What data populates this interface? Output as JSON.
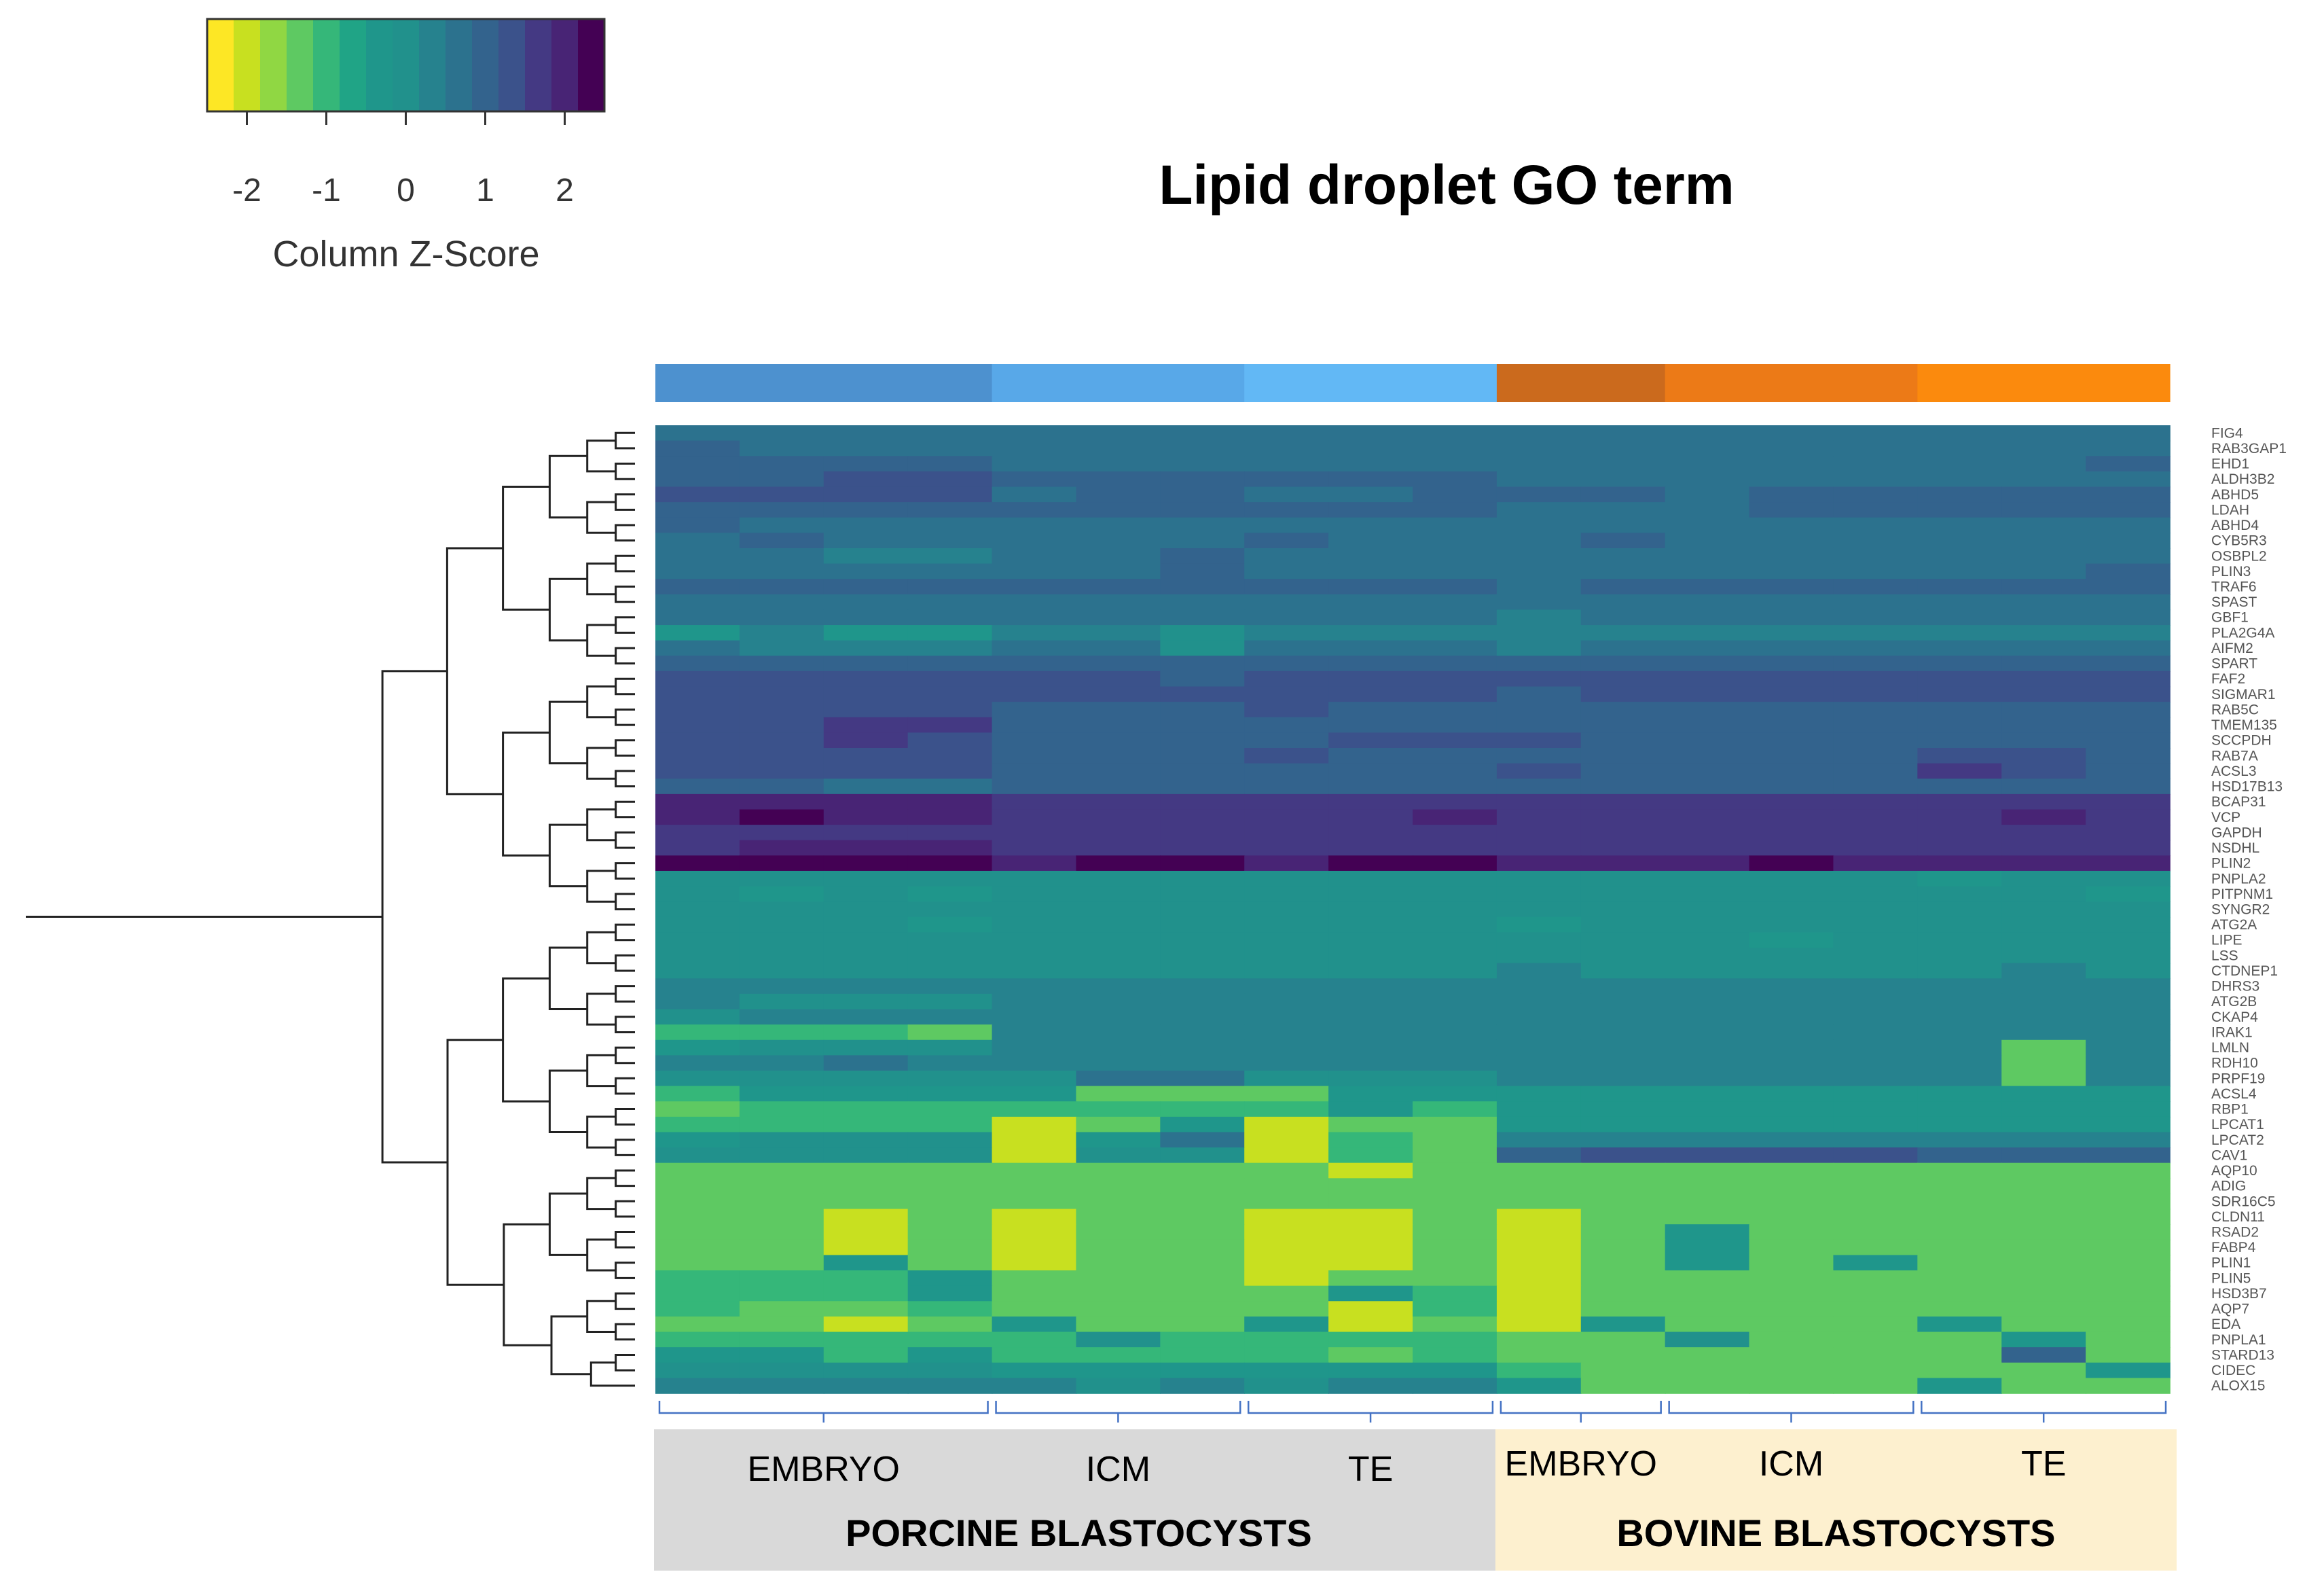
{
  "chart_data": {
    "type": "heatmap",
    "title": "Lipid droplet GO term",
    "colorbar": {
      "label": "Column Z-Score",
      "ticks": [
        -2,
        -1,
        0,
        1,
        2
      ],
      "range": [
        -2.5,
        2.5
      ],
      "colors": [
        "#fde725",
        "#c8e020",
        "#90d743",
        "#5ec962",
        "#35b779",
        "#20a486",
        "#1f968b",
        "#21918c",
        "#26828e",
        "#2c728e",
        "#33638d",
        "#3b528b",
        "#443983",
        "#482475",
        "#440154"
      ]
    },
    "genes": [
      "FIG4",
      "RAB3GAP1",
      "EHD1",
      "ALDH3B2",
      "ABHD5",
      "LDAH",
      "ABHD4",
      "CYB5R3",
      "OSBPL2",
      "PLIN3",
      "TRAF6",
      "SPAST",
      "GBF1",
      "PLA2G4A",
      "AIFM2",
      "SPART",
      "FAF2",
      "SIGMAR1",
      "RAB5C",
      "TMEM135",
      "SCCPDH",
      "RAB7A",
      "ACSL3",
      "HSD17B13",
      "BCAP31",
      "VCP",
      "GAPDH",
      "NSDHL",
      "PLIN2",
      "PNPLA2",
      "PITPNM1",
      "SYNGR2",
      "ATG2A",
      "LIPE",
      "LSS",
      "CTDNEP1",
      "DHRS3",
      "ATG2B",
      "CKAP4",
      "IRAK1",
      "LMLN",
      "RDH10",
      "PRPF19",
      "ACSL4",
      "RBP1",
      "LPCAT1",
      "LPCAT2",
      "CAV1",
      "AQP10",
      "ADIG",
      "SDR16C5",
      "CLDN11",
      "RSAD2",
      "FABP4",
      "PLIN1",
      "PLIN5",
      "HSD3B7",
      "AQP7",
      "EDA",
      "PNPLA1",
      "STARD13",
      "CIDEC",
      "ALOX15"
    ],
    "columns": {
      "groups": [
        {
          "label": "EMBRYO",
          "species": "PORCINE BLASTOCYSTS",
          "count": 4,
          "color": "#4d91cf"
        },
        {
          "label": "ICM",
          "species": "PORCINE BLASTOCYSTS",
          "count": 3,
          "color": "#58a8e8"
        },
        {
          "label": "TE",
          "species": "PORCINE BLASTOCYSTS",
          "count": 3,
          "color": "#62b8f5"
        },
        {
          "label": "EMBRYO",
          "species": "BOVINE BLASTOCYSTS",
          "count": 2,
          "color": "#cb6a1d"
        },
        {
          "label": "ICM",
          "species": "BOVINE BLASTOCYSTS",
          "count": 3,
          "color": "#ec7a17"
        },
        {
          "label": "TE",
          "species": "BOVINE BLASTOCYSTS",
          "count": 3,
          "color": "#fb8a0d"
        }
      ]
    },
    "species": [
      {
        "label": "PORCINE BLASTOCYSTS",
        "groups": 3,
        "background": "#d9d9d9"
      },
      {
        "label": "BOVINE BLASTOCYSTS",
        "groups": 3,
        "background": "#fdf0cf"
      }
    ],
    "z_scores": [
      [
        0.8,
        0.7,
        0.7,
        0.7,
        0.7,
        0.7,
        0.7,
        0.7,
        0.7,
        0.7,
        0.7,
        0.7,
        0.7,
        0.7,
        0.7,
        0.7,
        0.7,
        0.7
      ],
      [
        0.9,
        0.8,
        0.5,
        0.5,
        0.8,
        0.8,
        0.8,
        0.8,
        0.8,
        0.8,
        0.8,
        0.8,
        0.8,
        0.8,
        0.8,
        0.8,
        0.8,
        0.8
      ],
      [
        1.0,
        1.0,
        1.0,
        1.0,
        0.8,
        0.8,
        0.8,
        0.8,
        0.8,
        0.8,
        0.8,
        0.8,
        0.8,
        0.8,
        0.8,
        0.8,
        0.8,
        1.0
      ],
      [
        1.1,
        1.1,
        1.3,
        1.3,
        0.9,
        1.1,
        1.1,
        0.9,
        0.9,
        1.1,
        0.7,
        0.7,
        0.5,
        0.7,
        0.7,
        0.7,
        0.5,
        0.8
      ],
      [
        1.4,
        1.4,
        1.4,
        1.4,
        0.8,
        1.1,
        1.1,
        0.8,
        0.8,
        1.1,
        0.9,
        0.9,
        0.6,
        0.9,
        1.0,
        0.9,
        0.9,
        0.9
      ],
      [
        1.0,
        1.0,
        1.0,
        1.0,
        0.9,
        1.0,
        1.1,
        0.9,
        0.9,
        1.0,
        0.8,
        0.5,
        0.8,
        0.9,
        0.9,
        0.9,
        0.9,
        0.9
      ],
      [
        0.9,
        0.7,
        0.7,
        0.7,
        0.7,
        0.7,
        0.7,
        0.7,
        0.7,
        0.7,
        0.7,
        0.7,
        0.7,
        0.5,
        0.7,
        0.7,
        0.7,
        0.7
      ],
      [
        0.7,
        0.9,
        0.5,
        0.5,
        0.7,
        0.7,
        0.7,
        0.9,
        0.7,
        0.7,
        0.5,
        1.1,
        0.7,
        0.7,
        0.5,
        0.7,
        0.7,
        0.7
      ],
      [
        0.5,
        0.5,
        0.3,
        0.3,
        0.7,
        0.7,
        0.9,
        0.5,
        0.7,
        0.7,
        0.7,
        0.7,
        0.7,
        0.7,
        0.7,
        0.7,
        0.7,
        0.7
      ],
      [
        0.7,
        0.7,
        0.7,
        0.7,
        0.7,
        0.7,
        1.1,
        0.7,
        0.7,
        0.7,
        0.7,
        0.7,
        0.7,
        0.7,
        0.7,
        0.7,
        0.7,
        0.9
      ],
      [
        1.1,
        1.1,
        0.9,
        0.9,
        0.9,
        0.9,
        0.9,
        0.9,
        0.9,
        0.9,
        0.7,
        1.1,
        0.9,
        0.9,
        0.9,
        0.9,
        0.9,
        0.9
      ],
      [
        0.7,
        0.7,
        0.7,
        0.7,
        0.5,
        0.7,
        0.7,
        0.7,
        0.5,
        0.7,
        0.7,
        0.5,
        0.7,
        0.7,
        0.7,
        0.5,
        0.5,
        0.5
      ],
      [
        0.7,
        0.5,
        0.5,
        0.5,
        0.5,
        0.5,
        0.7,
        0.5,
        0.5,
        0.5,
        0.3,
        0.5,
        0.5,
        0.5,
        0.5,
        0.5,
        0.5,
        0.5
      ],
      [
        -0.2,
        0.3,
        -0.2,
        -0.2,
        0.3,
        0.3,
        -0.1,
        0.3,
        0.3,
        0.3,
        0.3,
        0.3,
        0.3,
        0.3,
        0.3,
        0.3,
        0.3,
        0.3
      ],
      [
        0.5,
        0.3,
        0.3,
        0.3,
        0.5,
        0.5,
        0.1,
        0.5,
        0.5,
        0.5,
        0.3,
        0.5,
        0.5,
        0.5,
        0.5,
        0.5,
        0.5,
        0.5
      ],
      [
        1.1,
        1.1,
        1.1,
        1.1,
        1.1,
        1.1,
        1.1,
        1.1,
        1.1,
        1.1,
        1.1,
        1.1,
        1.1,
        1.1,
        1.1,
        1.1,
        1.1,
        1.1
      ],
      [
        1.3,
        1.3,
        1.3,
        1.3,
        1.3,
        1.3,
        1.1,
        1.3,
        1.3,
        1.3,
        1.3,
        1.3,
        1.3,
        1.3,
        1.3,
        1.3,
        1.3,
        1.3
      ],
      [
        1.2,
        1.2,
        1.2,
        1.2,
        1.2,
        1.2,
        1.2,
        1.2,
        1.2,
        1.2,
        1.0,
        1.2,
        1.2,
        1.2,
        1.2,
        1.2,
        1.2,
        1.2
      ],
      [
        1.4,
        1.4,
        1.4,
        1.4,
        1.1,
        1.1,
        1.1,
        1.4,
        1.1,
        1.1,
        1.1,
        1.1,
        1.1,
        1.1,
        1.1,
        1.1,
        1.1,
        1.1
      ],
      [
        1.2,
        1.2,
        1.6,
        1.6,
        1.1,
        1.1,
        1.1,
        1.1,
        1.1,
        1.1,
        1.1,
        1.1,
        1.1,
        1.1,
        1.1,
        1.1,
        1.1,
        1.1
      ],
      [
        1.3,
        1.3,
        1.8,
        1.3,
        1.1,
        1.1,
        1.1,
        1.1,
        1.3,
        1.3,
        1.3,
        1.1,
        1.1,
        1.1,
        1.1,
        1.1,
        1.1,
        1.1
      ],
      [
        1.4,
        1.4,
        1.4,
        1.4,
        1.1,
        1.1,
        1.1,
        1.4,
        1.1,
        1.1,
        1.1,
        1.1,
        1.1,
        1.1,
        1.1,
        1.4,
        1.4,
        1.1
      ],
      [
        1.3,
        1.3,
        1.3,
        1.3,
        1.1,
        1.1,
        1.1,
        1.1,
        1.1,
        1.1,
        1.3,
        1.1,
        1.1,
        1.1,
        1.1,
        1.7,
        1.3,
        1.1
      ],
      [
        0.9,
        0.9,
        0.5,
        0.5,
        0.9,
        0.9,
        0.9,
        0.9,
        0.9,
        0.9,
        0.9,
        0.9,
        0.9,
        0.9,
        0.9,
        0.9,
        0.9,
        0.9
      ],
      [
        2.0,
        2.0,
        2.0,
        2.0,
        1.8,
        1.8,
        1.8,
        1.8,
        1.8,
        1.8,
        1.8,
        1.8,
        1.8,
        1.8,
        1.8,
        1.8,
        1.8,
        1.8
      ],
      [
        2.0,
        2.2,
        2.0,
        2.0,
        1.8,
        1.8,
        1.8,
        1.8,
        1.8,
        2.0,
        1.8,
        1.8,
        1.8,
        1.8,
        1.8,
        1.8,
        2.0,
        1.8
      ],
      [
        1.8,
        1.8,
        1.8,
        1.8,
        1.7,
        1.7,
        1.7,
        1.7,
        1.7,
        1.7,
        1.7,
        1.7,
        1.7,
        1.7,
        1.7,
        1.7,
        1.7,
        1.7
      ],
      [
        1.8,
        2.0,
        2.0,
        2.0,
        1.7,
        1.7,
        1.7,
        1.7,
        1.7,
        1.7,
        1.7,
        1.7,
        1.7,
        1.7,
        1.7,
        1.7,
        1.7,
        1.7
      ],
      [
        2.2,
        2.2,
        2.4,
        2.2,
        2.0,
        2.2,
        2.2,
        2.0,
        2.2,
        2.2,
        2.0,
        2.0,
        2.0,
        2.2,
        2.0,
        2.0,
        2.0,
        2.0
      ],
      [
        -0.1,
        -0.1,
        -0.1,
        -0.1,
        0.0,
        0.0,
        0.0,
        0.0,
        0.0,
        0.0,
        0.0,
        0.0,
        0.0,
        0.0,
        0.0,
        -0.3,
        0.0,
        0.0
      ],
      [
        0.0,
        -0.5,
        0.0,
        -0.5,
        0.0,
        0.0,
        0.0,
        0.0,
        0.0,
        0.0,
        0.0,
        0.0,
        0.0,
        0.0,
        0.0,
        0.0,
        0.0,
        -0.5
      ],
      [
        0.0,
        0.0,
        0.0,
        0.0,
        0.0,
        0.0,
        0.0,
        0.0,
        0.0,
        0.0,
        0.0,
        0.0,
        0.0,
        0.0,
        0.0,
        0.0,
        0.0,
        0.0
      ],
      [
        0.0,
        0.0,
        0.0,
        -0.5,
        0.0,
        0.0,
        0.0,
        0.0,
        0.0,
        0.0,
        -0.5,
        0.0,
        0.0,
        0.0,
        0.0,
        0.0,
        0.0,
        0.0
      ],
      [
        0.0,
        0.0,
        0.0,
        0.0,
        0.0,
        0.0,
        0.0,
        0.0,
        0.0,
        0.0,
        0.0,
        0.0,
        0.0,
        -0.5,
        0.0,
        0.0,
        0.0,
        0.0
      ],
      [
        0.0,
        0.0,
        0.0,
        0.0,
        0.0,
        0.0,
        0.0,
        0.0,
        0.0,
        0.0,
        0.0,
        0.0,
        0.0,
        0.0,
        0.0,
        0.0,
        0.0,
        0.0
      ],
      [
        0.0,
        0.0,
        0.0,
        0.0,
        0.0,
        0.0,
        0.0,
        0.0,
        0.0,
        0.0,
        0.3,
        0.0,
        0.0,
        0.0,
        0.0,
        0.0,
        0.3,
        0.0
      ],
      [
        0.3,
        0.3,
        0.3,
        0.3,
        0.3,
        0.3,
        0.3,
        0.3,
        0.3,
        0.3,
        0.3,
        0.3,
        0.3,
        0.3,
        0.3,
        0.3,
        0.3,
        0.3
      ],
      [
        0.3,
        0.0,
        0.0,
        0.0,
        0.3,
        0.3,
        0.3,
        0.3,
        0.3,
        0.3,
        0.3,
        0.3,
        0.3,
        0.3,
        0.3,
        0.3,
        0.3,
        0.3
      ],
      [
        0.0,
        0.3,
        0.3,
        0.3,
        0.3,
        0.3,
        0.3,
        0.3,
        0.3,
        0.3,
        0.3,
        0.3,
        0.3,
        0.3,
        0.3,
        0.3,
        0.3,
        0.3
      ],
      [
        -1.0,
        -1.0,
        -1.0,
        -1.5,
        0.3,
        0.3,
        0.3,
        0.3,
        0.3,
        0.3,
        0.3,
        0.3,
        0.3,
        0.3,
        0.3,
        0.3,
        0.3,
        0.3
      ],
      [
        -0.5,
        0.0,
        0.0,
        0.0,
        0.3,
        0.3,
        0.3,
        0.3,
        0.3,
        0.3,
        0.3,
        0.3,
        0.3,
        0.3,
        0.3,
        0.3,
        -1.5,
        0.3
      ],
      [
        0.3,
        0.3,
        0.6,
        0.3,
        0.3,
        0.3,
        0.3,
        0.3,
        0.3,
        0.3,
        0.3,
        0.3,
        0.3,
        0.3,
        0.3,
        0.3,
        -1.5,
        0.3
      ],
      [
        0.0,
        0.0,
        0.0,
        0.0,
        0.0,
        0.6,
        0.6,
        0.0,
        0.0,
        0.0,
        0.3,
        0.3,
        0.3,
        0.3,
        0.3,
        0.3,
        -1.2,
        0.3
      ],
      [
        -1.0,
        -0.5,
        -0.5,
        -0.5,
        -0.5,
        -1.5,
        -1.5,
        -1.5,
        -0.5,
        -0.5,
        -0.5,
        -0.5,
        -0.5,
        -0.5,
        -0.5,
        -0.5,
        -0.5,
        -0.5
      ],
      [
        -1.5,
        -1.0,
        -1.0,
        -1.0,
        -1.0,
        -1.0,
        -1.0,
        -1.0,
        -0.5,
        -1.0,
        -0.5,
        -0.5,
        -0.5,
        -0.5,
        -0.5,
        -0.5,
        -0.5,
        -0.5
      ],
      [
        -1.0,
        -1.0,
        -1.0,
        -1.0,
        -2.0,
        -1.5,
        -0.5,
        -2.0,
        -1.5,
        -1.5,
        -0.5,
        -0.5,
        -0.5,
        -0.5,
        -0.5,
        -0.5,
        -0.5,
        -0.5
      ],
      [
        -0.5,
        0.0,
        0.0,
        0.0,
        -2.0,
        -0.5,
        0.6,
        -2.0,
        -1.0,
        -1.5,
        0.3,
        0.3,
        0.3,
        0.3,
        0.3,
        0.3,
        0.3,
        0.3
      ],
      [
        0.0,
        0.0,
        0.0,
        0.0,
        -2.0,
        0.0,
        0.0,
        -2.0,
        -1.0,
        -1.5,
        0.9,
        1.2,
        1.2,
        1.2,
        1.2,
        0.9,
        0.9,
        0.9
      ],
      [
        -1.5,
        -1.5,
        -1.5,
        -1.5,
        -1.5,
        -1.5,
        -1.5,
        -1.5,
        -2.0,
        -1.5,
        -1.5,
        -1.5,
        -1.5,
        -1.5,
        -1.5,
        -1.5,
        -1.5,
        -1.5
      ],
      [
        -1.5,
        -1.2,
        -1.5,
        -1.5,
        -1.5,
        -1.5,
        -1.5,
        -1.2,
        -1.2,
        -1.5,
        -1.5,
        -1.5,
        -1.5,
        -1.5,
        -1.5,
        -1.5,
        -1.5,
        -1.5
      ],
      [
        -1.5,
        -1.5,
        -1.5,
        -1.5,
        -1.5,
        -1.5,
        -1.5,
        -1.5,
        -1.5,
        -1.5,
        -1.5,
        -1.5,
        -1.5,
        -1.5,
        -1.5,
        -1.5,
        -1.5,
        -1.5
      ],
      [
        -1.5,
        -1.5,
        -2.0,
        -1.5,
        -2.0,
        -1.5,
        -1.5,
        -2.0,
        -2.0,
        -1.5,
        -2.0,
        -1.5,
        -1.5,
        -1.5,
        -1.5,
        -1.5,
        -1.5,
        -1.5
      ],
      [
        -1.5,
        -1.5,
        -2.0,
        -1.5,
        -2.0,
        -1.5,
        -1.5,
        -2.0,
        -2.0,
        -1.5,
        -2.0,
        -1.5,
        -0.5,
        -1.5,
        -1.5,
        -1.5,
        -1.5,
        -1.5
      ],
      [
        -1.5,
        -1.5,
        -2.0,
        -1.5,
        -2.0,
        -1.5,
        -1.5,
        -2.0,
        -2.0,
        -1.5,
        -2.0,
        -1.5,
        -0.5,
        -1.5,
        -1.5,
        -1.5,
        -1.5,
        -1.5
      ],
      [
        -1.5,
        -1.5,
        -0.5,
        -1.5,
        -2.0,
        -1.5,
        -1.5,
        -2.0,
        -2.0,
        -1.5,
        -2.0,
        -1.5,
        -0.5,
        -1.5,
        -0.5,
        -1.5,
        -1.5,
        -1.5
      ],
      [
        -1.0,
        -1.0,
        -1.0,
        -0.5,
        -1.5,
        -1.5,
        -1.5,
        -2.0,
        -1.5,
        -1.5,
        -2.0,
        -1.5,
        -1.5,
        -1.5,
        -1.5,
        -1.5,
        -1.5,
        -1.2
      ],
      [
        -1.0,
        -1.0,
        -1.0,
        -0.2,
        -1.5,
        -1.5,
        -1.5,
        -1.5,
        -0.5,
        -1.0,
        -2.0,
        -1.5,
        -1.5,
        -1.5,
        -1.5,
        -1.5,
        -1.5,
        -1.5
      ],
      [
        -1.0,
        -1.5,
        -1.5,
        -1.0,
        -1.5,
        -1.5,
        -1.5,
        -1.5,
        -2.0,
        -1.0,
        -2.0,
        -1.5,
        -1.5,
        -1.5,
        -1.5,
        -1.5,
        -1.5,
        -1.5
      ],
      [
        -1.5,
        -1.5,
        -2.0,
        -1.5,
        -0.5,
        -1.5,
        -1.5,
        -0.5,
        -2.0,
        -1.5,
        -2.0,
        -0.5,
        -1.5,
        -1.5,
        -1.5,
        -0.5,
        -1.5,
        -1.5
      ],
      [
        -1.0,
        -1.0,
        -1.0,
        -1.0,
        -1.0,
        0.0,
        -1.0,
        -1.0,
        -1.0,
        -1.0,
        -1.5,
        -1.5,
        0.0,
        -1.5,
        -1.5,
        -1.5,
        -0.5,
        -1.5
      ],
      [
        -0.5,
        -0.5,
        -1.0,
        -0.5,
        -1.0,
        -1.0,
        -1.0,
        -1.0,
        -1.5,
        -1.0,
        -1.5,
        -1.5,
        -1.5,
        -1.5,
        -1.5,
        -1.5,
        0.9,
        -1.5
      ],
      [
        0.0,
        0.0,
        0.0,
        0.0,
        -0.5,
        -0.5,
        -0.5,
        -0.5,
        -0.5,
        -0.5,
        -1.0,
        -1.5,
        -1.5,
        -1.5,
        -1.5,
        -1.5,
        -1.5,
        -0.5
      ],
      [
        0.3,
        0.3,
        0.3,
        0.3,
        0.3,
        0.0,
        0.3,
        0.0,
        0.3,
        0.3,
        -0.5,
        -1.5,
        -1.5,
        -1.5,
        -1.5,
        -0.5,
        -1.5,
        -1.5
      ]
    ]
  }
}
